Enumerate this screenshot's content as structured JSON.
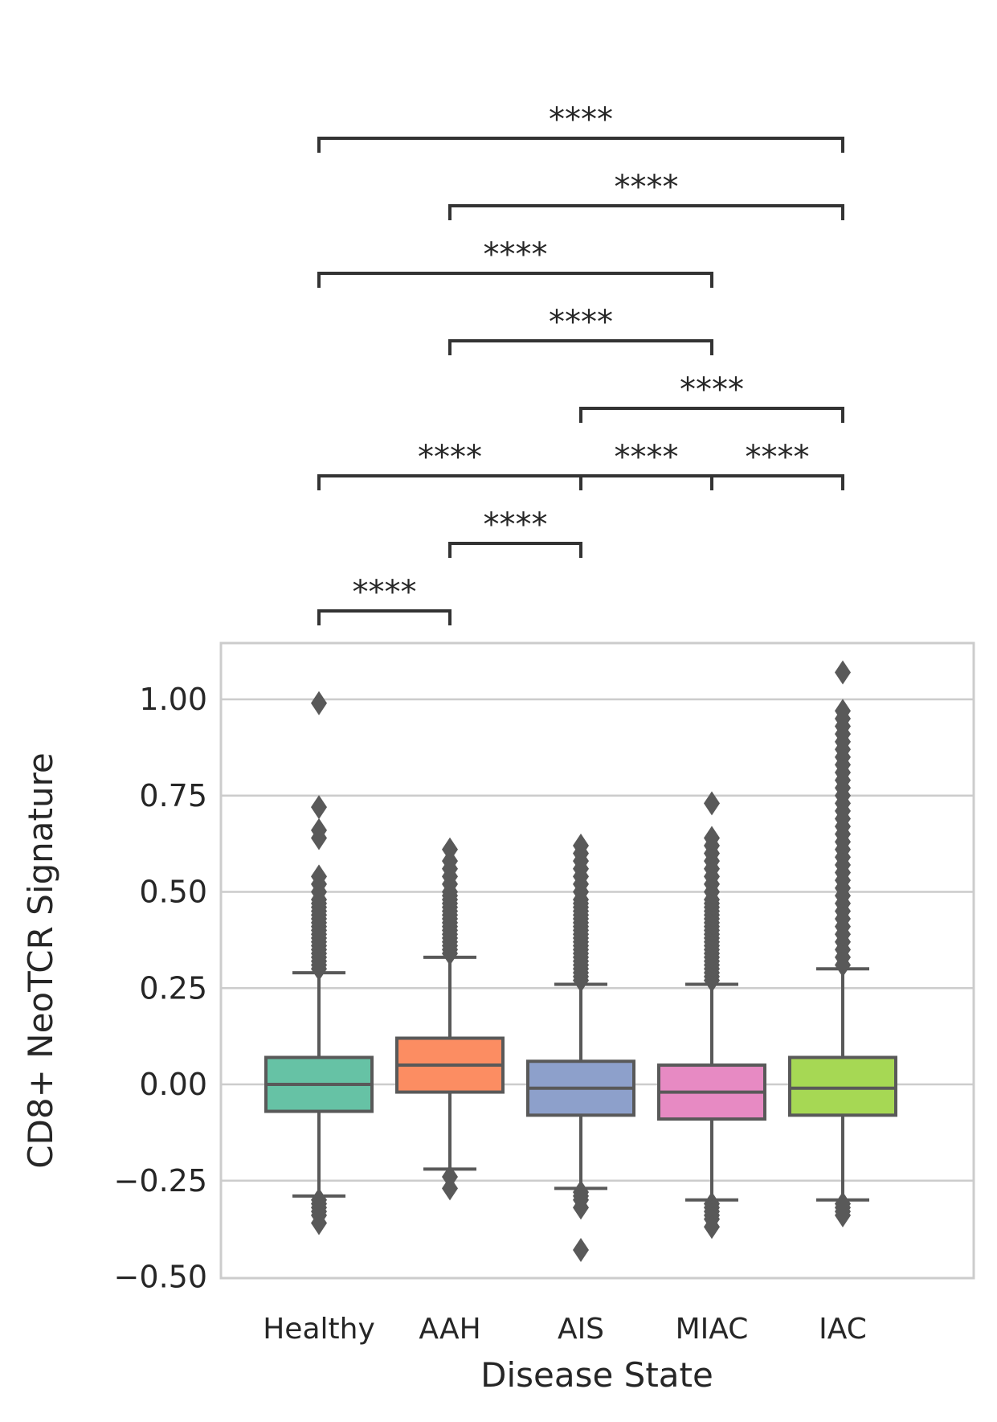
{
  "chart_data": {
    "type": "box",
    "xlabel": "Disease State",
    "ylabel": "CD8+ NeoTCR Signature",
    "ylim": [
      -0.5,
      1.15
    ],
    "yticks": [
      -0.5,
      -0.25,
      0.0,
      0.25,
      0.5,
      0.75,
      1.0
    ],
    "ytick_labels": [
      "−0.50",
      "−0.25",
      "0.00",
      "0.25",
      "0.50",
      "0.75",
      "1.00"
    ],
    "grid": "horizontal",
    "categories": [
      "Healthy",
      "AAH",
      "AIS",
      "MIAC",
      "IAC"
    ],
    "boxes": [
      {
        "name": "Healthy",
        "color": "#66c2a5",
        "whisker_low": -0.29,
        "q1": -0.07,
        "median": 0.0,
        "q3": 0.07,
        "whisker_high": 0.29,
        "outliers_low": [
          -0.3,
          -0.31,
          -0.32,
          -0.33,
          -0.34,
          -0.36
        ],
        "outliers_high": [
          0.3,
          0.31,
          0.32,
          0.33,
          0.34,
          0.35,
          0.36,
          0.37,
          0.38,
          0.39,
          0.4,
          0.41,
          0.42,
          0.43,
          0.44,
          0.45,
          0.46,
          0.47,
          0.48,
          0.5,
          0.52,
          0.54,
          0.64,
          0.66,
          0.72,
          0.99
        ]
      },
      {
        "name": "AAH",
        "color": "#fc8d62",
        "whisker_low": -0.22,
        "q1": -0.02,
        "median": 0.05,
        "q3": 0.12,
        "whisker_high": 0.33,
        "outliers_low": [
          -0.24,
          -0.27
        ],
        "outliers_high": [
          0.34,
          0.35,
          0.36,
          0.37,
          0.38,
          0.39,
          0.4,
          0.41,
          0.42,
          0.43,
          0.44,
          0.45,
          0.46,
          0.47,
          0.48,
          0.49,
          0.5,
          0.52,
          0.54,
          0.56,
          0.58,
          0.61
        ]
      },
      {
        "name": "AIS",
        "color": "#8da0cb",
        "whisker_low": -0.27,
        "q1": -0.08,
        "median": -0.01,
        "q3": 0.06,
        "whisker_high": 0.26,
        "outliers_low": [
          -0.28,
          -0.29,
          -0.3,
          -0.32,
          -0.43
        ],
        "outliers_high": [
          0.27,
          0.28,
          0.29,
          0.3,
          0.31,
          0.32,
          0.33,
          0.34,
          0.35,
          0.36,
          0.37,
          0.38,
          0.39,
          0.4,
          0.41,
          0.42,
          0.43,
          0.44,
          0.45,
          0.46,
          0.47,
          0.48,
          0.5,
          0.52,
          0.54,
          0.56,
          0.58,
          0.6,
          0.62
        ]
      },
      {
        "name": "MIAC",
        "color": "#e78ac3",
        "whisker_low": -0.3,
        "q1": -0.09,
        "median": -0.02,
        "q3": 0.05,
        "whisker_high": 0.26,
        "outliers_low": [
          -0.31,
          -0.32,
          -0.33,
          -0.34,
          -0.35,
          -0.37
        ],
        "outliers_high": [
          0.27,
          0.28,
          0.29,
          0.3,
          0.31,
          0.32,
          0.33,
          0.34,
          0.35,
          0.36,
          0.37,
          0.38,
          0.39,
          0.4,
          0.41,
          0.42,
          0.43,
          0.44,
          0.45,
          0.46,
          0.47,
          0.48,
          0.5,
          0.52,
          0.54,
          0.56,
          0.58,
          0.6,
          0.62,
          0.64,
          0.73
        ]
      },
      {
        "name": "IAC",
        "color": "#a6d854",
        "whisker_low": -0.3,
        "q1": -0.08,
        "median": -0.01,
        "q3": 0.07,
        "whisker_high": 0.3,
        "outliers_low": [
          -0.31,
          -0.32,
          -0.33,
          -0.34
        ],
        "outliers_high": [
          0.31,
          0.33,
          0.35,
          0.37,
          0.39,
          0.41,
          0.43,
          0.45,
          0.47,
          0.49,
          0.51,
          0.53,
          0.55,
          0.57,
          0.59,
          0.61,
          0.63,
          0.65,
          0.67,
          0.69,
          0.71,
          0.73,
          0.75,
          0.77,
          0.79,
          0.81,
          0.83,
          0.85,
          0.87,
          0.89,
          0.91,
          0.93,
          0.95,
          0.97,
          1.07
        ]
      }
    ],
    "annotations": [
      {
        "pair": [
          "Healthy",
          "AAH"
        ],
        "label": "****"
      },
      {
        "pair": [
          "AAH",
          "AIS"
        ],
        "label": "****"
      },
      {
        "pair": [
          "AIS",
          "MIAC"
        ],
        "label": "****"
      },
      {
        "pair": [
          "Healthy",
          "AIS"
        ],
        "label": "****"
      },
      {
        "pair": [
          "MIAC",
          "IAC"
        ],
        "label": "****"
      },
      {
        "pair": [
          "AIS",
          "IAC"
        ],
        "label": "****"
      },
      {
        "pair": [
          "AAH",
          "MIAC"
        ],
        "label": "****"
      },
      {
        "pair": [
          "Healthy",
          "MIAC"
        ],
        "label": "****"
      },
      {
        "pair": [
          "AAH",
          "IAC"
        ],
        "label": "****"
      },
      {
        "pair": [
          "Healthy",
          "IAC"
        ],
        "label": "****"
      }
    ]
  }
}
